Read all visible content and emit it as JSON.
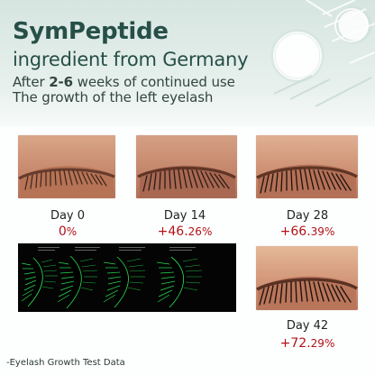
{
  "hero": {
    "title_line_1": "SymPeptide",
    "title_line_2": "ingredient from Germany",
    "subtitle_prefix": "After ",
    "subtitle_weeks": "2-6",
    "subtitle_suffix": " weeks of continued use",
    "subtitle_line_2": "The growth of the left eyelash"
  },
  "results": [
    {
      "day": "Day 0",
      "percent_main": "0",
      "percent_suffix": "%"
    },
    {
      "day": "Day 14",
      "percent_main": "+46.",
      "percent_decimal": "26",
      "percent_suffix": "%"
    },
    {
      "day": "Day 28",
      "percent_main": "+66.",
      "percent_decimal": "39",
      "percent_suffix": "%"
    },
    {
      "day": "Day 42",
      "percent_main": "+72.",
      "percent_decimal": "29",
      "percent_suffix": "%"
    }
  ],
  "footer": {
    "note": "-Eyelash Growth Test Data"
  },
  "colors": {
    "headline": "#264f47",
    "accent_red": "#b31218",
    "scan_green": "#2ef05b"
  },
  "icons": [
    "lab-glassware-illustration",
    "eye-closeup-photo",
    "eyelash-growth-scan"
  ]
}
